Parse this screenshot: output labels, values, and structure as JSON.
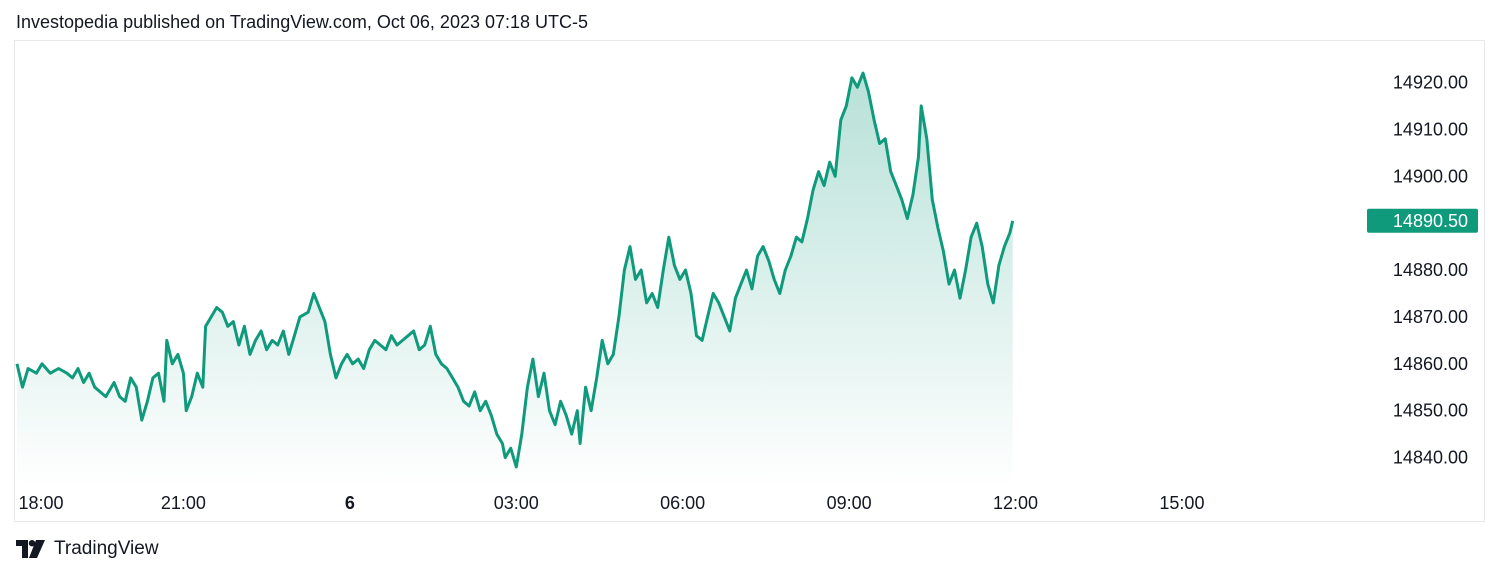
{
  "header": {
    "published": "Investopedia published on TradingView.com, Oct 06, 2023 07:18 UTC-5"
  },
  "footer": {
    "brand": "TradingView"
  },
  "colors": {
    "line": "#0f9a7c",
    "fill_top": "#0f9a7c",
    "badge_bg": "#0e9a7b",
    "badge_text": "#ffffff",
    "axis_text": "#131722"
  },
  "chart_data": {
    "type": "area",
    "ylim": [
      14835,
      14928
    ],
    "y_ticks": [
      14840,
      14850,
      14860,
      14870,
      14880,
      14890,
      14900,
      14910,
      14920
    ],
    "y_tick_labels": [
      "14840.00",
      "14850.00",
      "14860.00",
      "14870.00",
      "14880.00",
      "14890.00",
      "14900.00",
      "14910.00",
      "14920.00"
    ],
    "x_ticks": [
      {
        "label": "18:00",
        "hours": 0
      },
      {
        "label": "21:00",
        "hours": 3
      },
      {
        "label": "6",
        "hours": 6,
        "bold": true
      },
      {
        "label": "03:00",
        "hours": 9
      },
      {
        "label": "06:00",
        "hours": 12
      },
      {
        "label": "09:00",
        "hours": 15
      },
      {
        "label": "12:00",
        "hours": 18
      },
      {
        "label": "15:00",
        "hours": 21
      }
    ],
    "xlim_hours": [
      0,
      24.3
    ],
    "last_price": "14890.50",
    "series": [
      {
        "points": [
          [
            0.0,
            14860
          ],
          [
            0.1,
            14855
          ],
          [
            0.2,
            14859
          ],
          [
            0.35,
            14858
          ],
          [
            0.45,
            14860
          ],
          [
            0.6,
            14858
          ],
          [
            0.75,
            14859
          ],
          [
            0.9,
            14858
          ],
          [
            1.0,
            14857
          ],
          [
            1.1,
            14859
          ],
          [
            1.2,
            14856
          ],
          [
            1.3,
            14858
          ],
          [
            1.4,
            14855
          ],
          [
            1.5,
            14854
          ],
          [
            1.6,
            14853
          ],
          [
            1.75,
            14856
          ],
          [
            1.85,
            14853
          ],
          [
            1.95,
            14852
          ],
          [
            2.05,
            14857
          ],
          [
            2.15,
            14855
          ],
          [
            2.25,
            14848
          ],
          [
            2.35,
            14852
          ],
          [
            2.45,
            14857
          ],
          [
            2.55,
            14858
          ],
          [
            2.65,
            14852
          ],
          [
            2.7,
            14865
          ],
          [
            2.8,
            14860
          ],
          [
            2.9,
            14862
          ],
          [
            3.0,
            14858
          ],
          [
            3.05,
            14850
          ],
          [
            3.15,
            14853
          ],
          [
            3.25,
            14858
          ],
          [
            3.35,
            14855
          ],
          [
            3.4,
            14868
          ],
          [
            3.5,
            14870
          ],
          [
            3.6,
            14872
          ],
          [
            3.7,
            14871
          ],
          [
            3.8,
            14868
          ],
          [
            3.9,
            14869
          ],
          [
            4.0,
            14864
          ],
          [
            4.1,
            14868
          ],
          [
            4.2,
            14862
          ],
          [
            4.3,
            14865
          ],
          [
            4.4,
            14867
          ],
          [
            4.5,
            14863
          ],
          [
            4.6,
            14865
          ],
          [
            4.7,
            14864
          ],
          [
            4.8,
            14867
          ],
          [
            4.9,
            14862
          ],
          [
            5.0,
            14866
          ],
          [
            5.1,
            14870
          ],
          [
            5.25,
            14871
          ],
          [
            5.35,
            14875
          ],
          [
            5.45,
            14872
          ],
          [
            5.55,
            14869
          ],
          [
            5.65,
            14862
          ],
          [
            5.75,
            14857
          ],
          [
            5.85,
            14860
          ],
          [
            5.95,
            14862
          ],
          [
            6.05,
            14860
          ],
          [
            6.15,
            14861
          ],
          [
            6.25,
            14859
          ],
          [
            6.35,
            14863
          ],
          [
            6.45,
            14865
          ],
          [
            6.55,
            14864
          ],
          [
            6.65,
            14863
          ],
          [
            6.75,
            14866
          ],
          [
            6.85,
            14864
          ],
          [
            6.95,
            14865
          ],
          [
            7.05,
            14866
          ],
          [
            7.15,
            14867
          ],
          [
            7.25,
            14863
          ],
          [
            7.35,
            14864
          ],
          [
            7.45,
            14868
          ],
          [
            7.55,
            14862
          ],
          [
            7.65,
            14860
          ],
          [
            7.75,
            14859
          ],
          [
            7.85,
            14857
          ],
          [
            7.95,
            14855
          ],
          [
            8.05,
            14852
          ],
          [
            8.15,
            14851
          ],
          [
            8.25,
            14854
          ],
          [
            8.35,
            14850
          ],
          [
            8.45,
            14852
          ],
          [
            8.55,
            14849
          ],
          [
            8.65,
            14845
          ],
          [
            8.75,
            14843
          ],
          [
            8.8,
            14840
          ],
          [
            8.9,
            14842
          ],
          [
            9.0,
            14838
          ],
          [
            9.1,
            14845
          ],
          [
            9.2,
            14855
          ],
          [
            9.3,
            14861
          ],
          [
            9.4,
            14853
          ],
          [
            9.5,
            14858
          ],
          [
            9.6,
            14850
          ],
          [
            9.7,
            14847
          ],
          [
            9.8,
            14852
          ],
          [
            9.9,
            14849
          ],
          [
            10.0,
            14845
          ],
          [
            10.1,
            14850
          ],
          [
            10.15,
            14843
          ],
          [
            10.25,
            14855
          ],
          [
            10.35,
            14850
          ],
          [
            10.45,
            14857
          ],
          [
            10.55,
            14865
          ],
          [
            10.65,
            14860
          ],
          [
            10.75,
            14862
          ],
          [
            10.85,
            14870
          ],
          [
            10.95,
            14880
          ],
          [
            11.05,
            14885
          ],
          [
            11.15,
            14878
          ],
          [
            11.25,
            14880
          ],
          [
            11.35,
            14873
          ],
          [
            11.45,
            14875
          ],
          [
            11.55,
            14872
          ],
          [
            11.65,
            14880
          ],
          [
            11.75,
            14887
          ],
          [
            11.85,
            14881
          ],
          [
            11.95,
            14878
          ],
          [
            12.05,
            14880
          ],
          [
            12.15,
            14875
          ],
          [
            12.25,
            14866
          ],
          [
            12.35,
            14865
          ],
          [
            12.45,
            14870
          ],
          [
            12.55,
            14875
          ],
          [
            12.65,
            14873
          ],
          [
            12.75,
            14870
          ],
          [
            12.85,
            14867
          ],
          [
            12.95,
            14874
          ],
          [
            13.05,
            14877
          ],
          [
            13.15,
            14880
          ],
          [
            13.25,
            14876
          ],
          [
            13.35,
            14883
          ],
          [
            13.45,
            14885
          ],
          [
            13.55,
            14882
          ],
          [
            13.65,
            14878
          ],
          [
            13.75,
            14875
          ],
          [
            13.85,
            14880
          ],
          [
            13.95,
            14883
          ],
          [
            14.05,
            14887
          ],
          [
            14.15,
            14886
          ],
          [
            14.25,
            14891
          ],
          [
            14.35,
            14897
          ],
          [
            14.45,
            14901
          ],
          [
            14.55,
            14898
          ],
          [
            14.65,
            14903
          ],
          [
            14.75,
            14900
          ],
          [
            14.85,
            14912
          ],
          [
            14.95,
            14915
          ],
          [
            15.05,
            14921
          ],
          [
            15.15,
            14919
          ],
          [
            15.25,
            14922
          ],
          [
            15.35,
            14918
          ],
          [
            15.45,
            14912
          ],
          [
            15.55,
            14907
          ],
          [
            15.65,
            14908
          ],
          [
            15.75,
            14901
          ],
          [
            15.85,
            14898
          ],
          [
            15.95,
            14895
          ],
          [
            16.05,
            14891
          ],
          [
            16.15,
            14896
          ],
          [
            16.25,
            14904
          ],
          [
            16.3,
            14915
          ],
          [
            16.4,
            14908
          ],
          [
            16.5,
            14895
          ],
          [
            16.6,
            14889
          ],
          [
            16.7,
            14884
          ],
          [
            16.8,
            14877
          ],
          [
            16.9,
            14880
          ],
          [
            17.0,
            14874
          ],
          [
            17.1,
            14880
          ],
          [
            17.2,
            14887
          ],
          [
            17.3,
            14890
          ],
          [
            17.4,
            14885
          ],
          [
            17.5,
            14877
          ],
          [
            17.6,
            14873
          ],
          [
            17.7,
            14881
          ],
          [
            17.8,
            14885
          ],
          [
            17.9,
            14888
          ],
          [
            17.95,
            14890.5
          ]
        ]
      }
    ]
  }
}
